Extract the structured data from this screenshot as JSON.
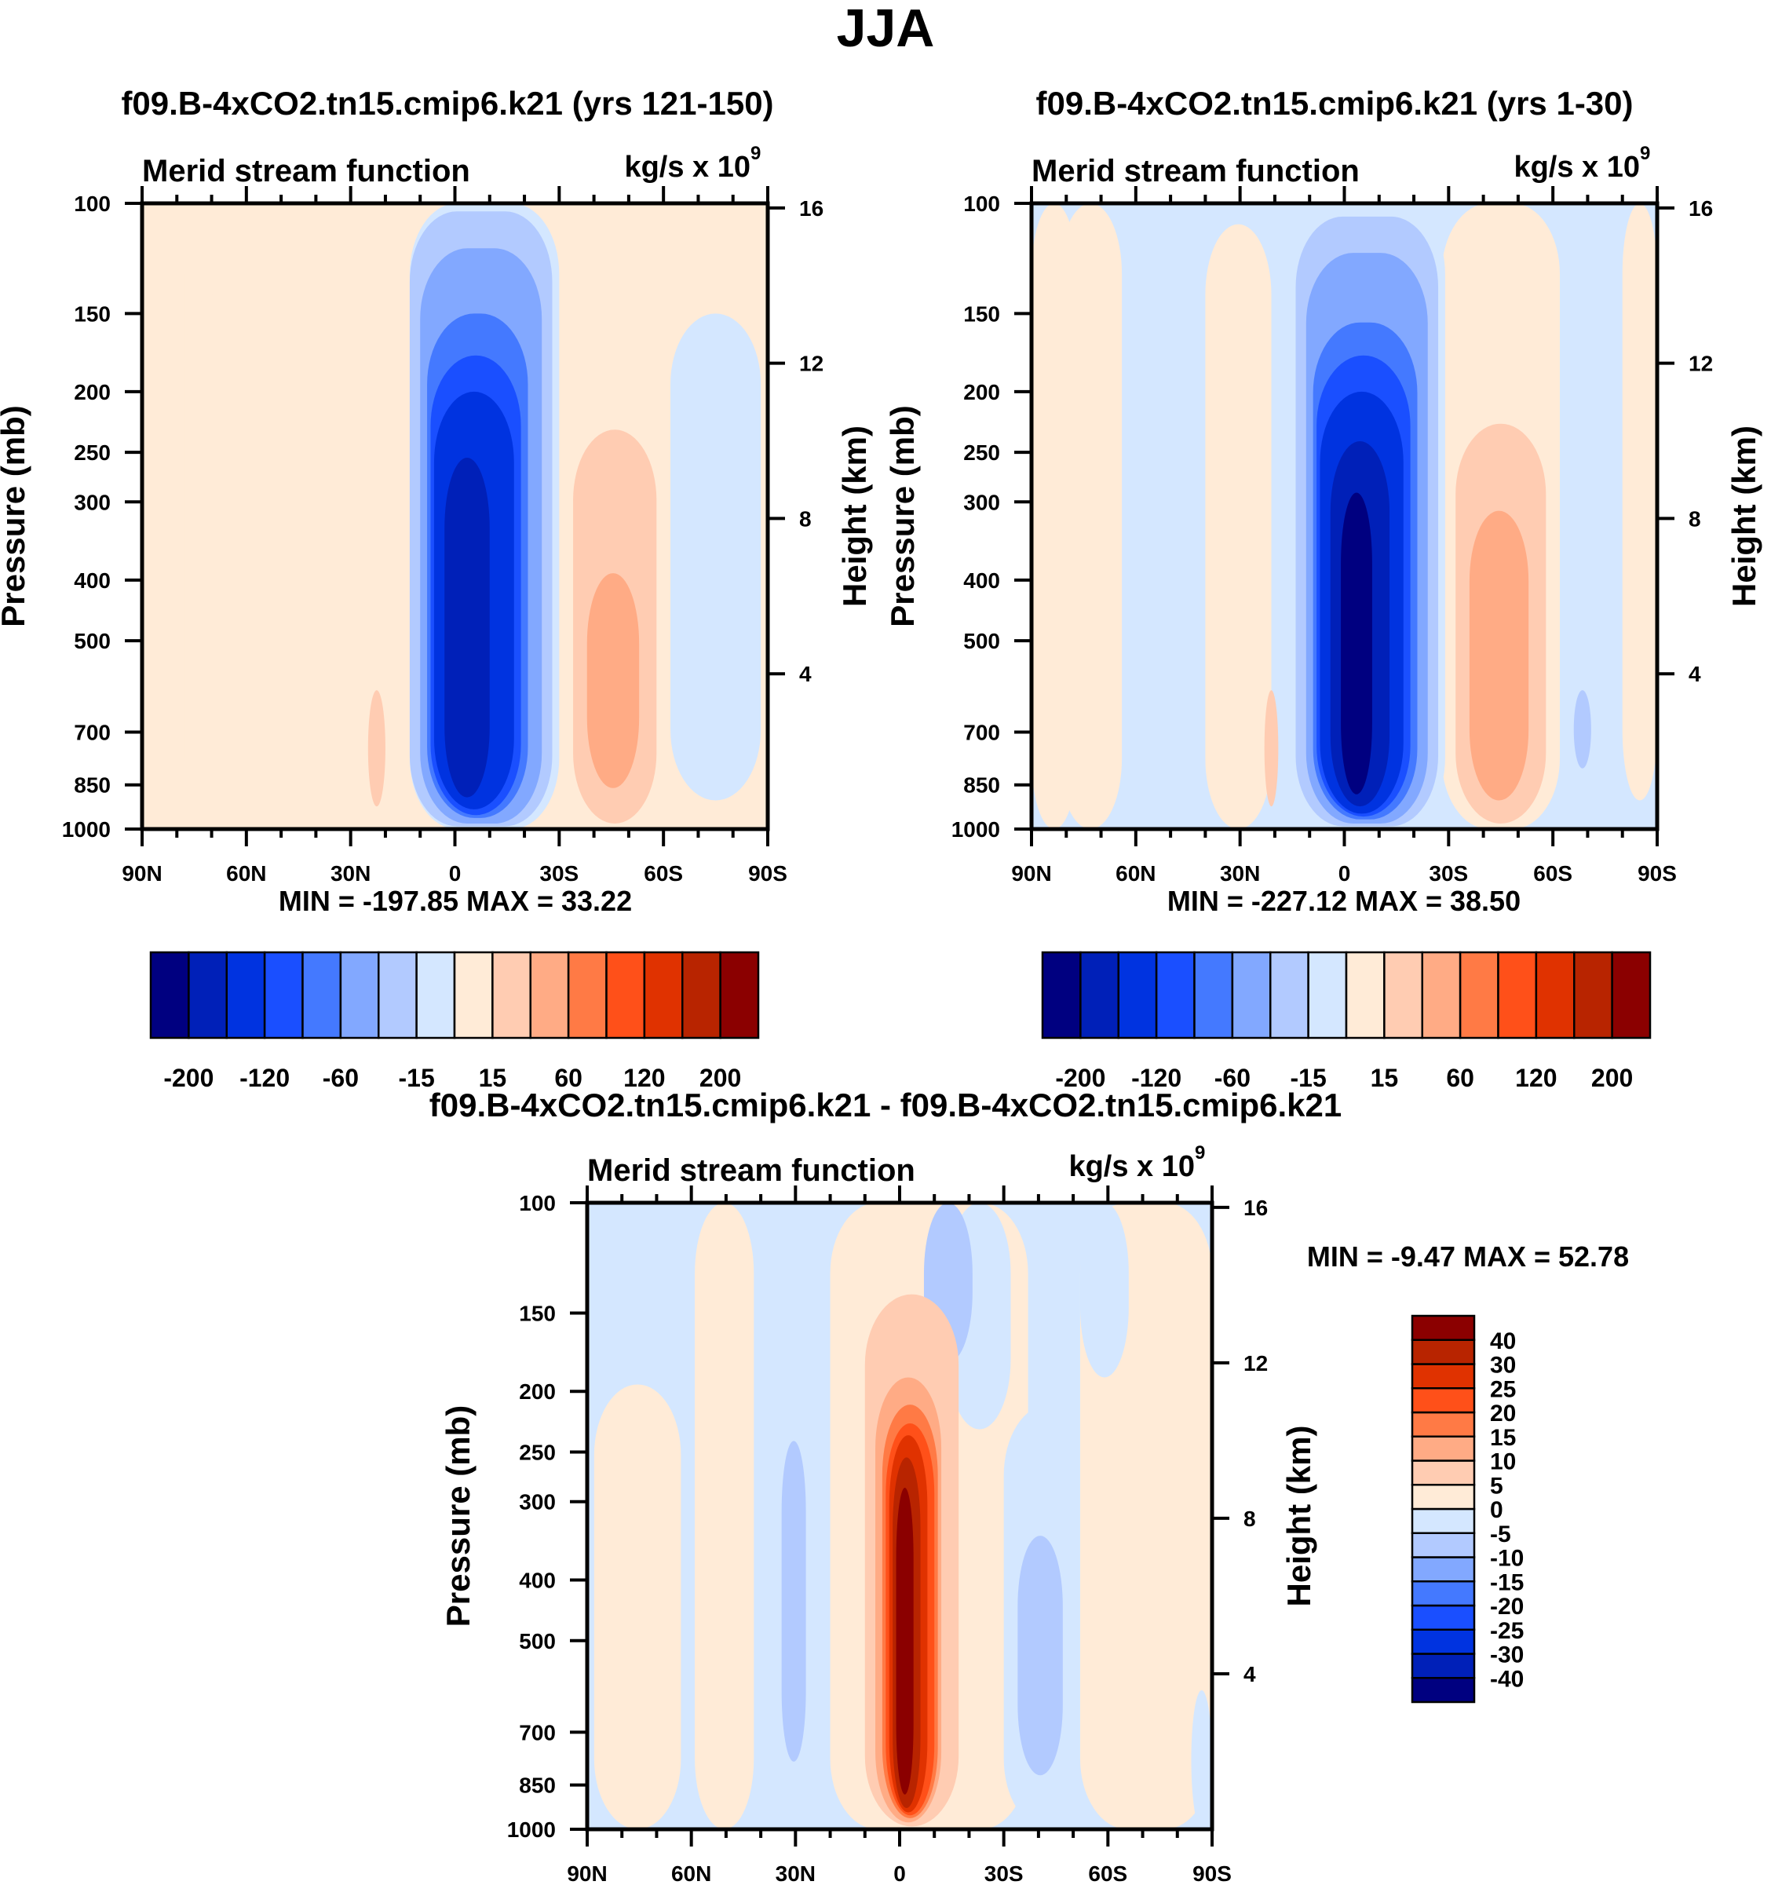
{
  "figure": {
    "main_title": "JJA"
  },
  "colors": {
    "stream_function_palette": [
      "#000080",
      "#0020b8",
      "#0033e0",
      "#1a4fff",
      "#4479ff",
      "#82a8ff",
      "#b2caff",
      "#d4e7ff",
      "#ffebd7",
      "#ffccb2",
      "#ffab85",
      "#ff7a45",
      "#ff5019",
      "#e03200",
      "#b82400",
      "#8b0000"
    ]
  },
  "chart_data": [
    {
      "id": "panel-a",
      "type": "heatmap",
      "title": "f09.B-4xCO2.tn15.cmip6.k21 (yrs 121-150)",
      "left_string": "Merid stream function",
      "right_string": "kg/s x 10",
      "right_string_exponent": "9",
      "xlabel": "",
      "ylabel": "Pressure (mb)",
      "y2label": "Height (km)",
      "xlim": [
        90,
        -90
      ],
      "ylim": [
        1000,
        100
      ],
      "x_ticks": [
        90,
        60,
        30,
        0,
        -30,
        -60,
        -90
      ],
      "x_tick_labels": [
        "90N",
        "60N",
        "30N",
        "0",
        "30S",
        "60S",
        "90S"
      ],
      "y_ticks": [
        100,
        150,
        200,
        250,
        300,
        400,
        500,
        700,
        850,
        1000
      ],
      "y_tick_labels": [
        "100",
        "150",
        "200",
        "250",
        "300",
        "400",
        "500",
        "700",
        "850",
        "1000"
      ],
      "y2_ticks_km": [
        16,
        12,
        8,
        4
      ],
      "y2_tick_labels": [
        "16",
        "12",
        "8",
        "4"
      ],
      "stats_label": "MIN = -197.85  MAX =  33.22",
      "min": -197.85,
      "max": 33.22,
      "colorbar": {
        "orientation": "horizontal",
        "levels": [
          -200,
          -160,
          -120,
          -80,
          -60,
          -40,
          -15,
          0,
          15,
          40,
          60,
          80,
          120,
          160,
          200
        ],
        "labels": [
          "-200",
          "-120",
          "-60",
          "-15",
          "15",
          "60",
          "120",
          "200"
        ]
      },
      "background_level": 8,
      "regions": [
        {
          "lat": [
            90,
            78
          ],
          "p": [
            100,
            1000
          ],
          "level": 8
        },
        {
          "lat": [
            78,
            60
          ],
          "p": [
            140,
            1000
          ],
          "level": 8
        },
        {
          "lat": [
            67,
            58
          ],
          "p": [
            100,
            125
          ],
          "level": 8
        },
        {
          "lat": [
            40,
            26
          ],
          "p": [
            118,
            1000
          ],
          "level": 8
        },
        {
          "lat": [
            -30,
            -90
          ],
          "p": [
            100,
            1000
          ],
          "level": 8
        },
        {
          "lat": [
            -62,
            -88
          ],
          "p": [
            150,
            900
          ],
          "level": 7
        },
        {
          "lat": [
            25,
            20
          ],
          "p": [
            600,
            920
          ],
          "level": 9
        },
        {
          "lat": [
            13,
            -30
          ],
          "p": [
            100,
            1000
          ],
          "level": 7
        },
        {
          "lat": [
            13,
            -28
          ],
          "p": [
            103,
            990
          ],
          "level": 6
        },
        {
          "lat": [
            10,
            -25
          ],
          "p": [
            118,
            980
          ],
          "level": 5
        },
        {
          "lat": [
            8,
            -21
          ],
          "p": [
            150,
            960
          ],
          "level": 4
        },
        {
          "lat": [
            7,
            -19
          ],
          "p": [
            175,
            950
          ],
          "level": 3
        },
        {
          "lat": [
            6,
            -17
          ],
          "p": [
            200,
            930
          ],
          "level": 2
        },
        {
          "lat": [
            3,
            -10
          ],
          "p": [
            255,
            890
          ],
          "level": 1
        },
        {
          "lat": [
            -34,
            -58
          ],
          "p": [
            230,
            980
          ],
          "level": 9
        },
        {
          "lat": [
            -38,
            -53
          ],
          "p": [
            390,
            860
          ],
          "level": 10
        }
      ]
    },
    {
      "id": "panel-b",
      "type": "heatmap",
      "title": "f09.B-4xCO2.tn15.cmip6.k21 (yrs 1-30)",
      "left_string": "Merid stream function",
      "right_string": "kg/s x 10",
      "right_string_exponent": "9",
      "xlabel": "",
      "ylabel": "Pressure (mb)",
      "y2label": "Height (km)",
      "xlim": [
        90,
        -90
      ],
      "ylim": [
        1000,
        100
      ],
      "x_ticks": [
        90,
        60,
        30,
        0,
        -30,
        -60,
        -90
      ],
      "x_tick_labels": [
        "90N",
        "60N",
        "30N",
        "0",
        "30S",
        "60S",
        "90S"
      ],
      "y_ticks": [
        100,
        150,
        200,
        250,
        300,
        400,
        500,
        700,
        850,
        1000
      ],
      "y_tick_labels": [
        "100",
        "150",
        "200",
        "250",
        "300",
        "400",
        "500",
        "700",
        "850",
        "1000"
      ],
      "y2_ticks_km": [
        16,
        12,
        8,
        4
      ],
      "y2_tick_labels": [
        "16",
        "12",
        "8",
        "4"
      ],
      "stats_label": "MIN = -227.12  MAX =  38.50",
      "min": -227.12,
      "max": 38.5,
      "colorbar": {
        "orientation": "horizontal",
        "levels": [
          -200,
          -160,
          -120,
          -80,
          -60,
          -40,
          -15,
          0,
          15,
          40,
          60,
          80,
          120,
          160,
          200
        ],
        "labels": [
          "-200",
          "-120",
          "-60",
          "-15",
          "15",
          "60",
          "120",
          "200"
        ]
      },
      "background_level": 7,
      "regions": [
        {
          "lat": [
            90,
            77
          ],
          "p": [
            100,
            1000
          ],
          "level": 8
        },
        {
          "lat": [
            82,
            64
          ],
          "p": [
            100,
            1000
          ],
          "level": 8
        },
        {
          "lat": [
            40,
            21
          ],
          "p": [
            108,
            1000
          ],
          "level": 8
        },
        {
          "lat": [
            -28,
            -62
          ],
          "p": [
            100,
            1000
          ],
          "level": 8
        },
        {
          "lat": [
            -80,
            -90
          ],
          "p": [
            100,
            900
          ],
          "level": 8
        },
        {
          "lat": [
            23,
            19
          ],
          "p": [
            600,
            920
          ],
          "level": 9
        },
        {
          "lat": [
            13,
            -29
          ],
          "p": [
            100,
            1000
          ],
          "level": 7
        },
        {
          "lat": [
            14,
            -27
          ],
          "p": [
            105,
            990
          ],
          "level": 6
        },
        {
          "lat": [
            11,
            -24
          ],
          "p": [
            120,
            980
          ],
          "level": 5
        },
        {
          "lat": [
            9,
            -21
          ],
          "p": [
            155,
            965
          ],
          "level": 4
        },
        {
          "lat": [
            8,
            -19
          ],
          "p": [
            175,
            955
          ],
          "level": 3
        },
        {
          "lat": [
            7,
            -17
          ],
          "p": [
            200,
            945
          ],
          "level": 2
        },
        {
          "lat": [
            4,
            -13
          ],
          "p": [
            240,
            920
          ],
          "level": 1
        },
        {
          "lat": [
            1,
            -8
          ],
          "p": [
            290,
            880
          ],
          "level": 0
        },
        {
          "lat": [
            -66,
            -71
          ],
          "p": [
            600,
            800
          ],
          "level": 6
        },
        {
          "lat": [
            -32,
            -58
          ],
          "p": [
            225,
            980
          ],
          "level": 9
        },
        {
          "lat": [
            -36,
            -53
          ],
          "p": [
            310,
            900
          ],
          "level": 10
        }
      ]
    },
    {
      "id": "panel-diff",
      "type": "heatmap",
      "title": "f09.B-4xCO2.tn15.cmip6.k21 - f09.B-4xCO2.tn15.cmip6.k21",
      "left_string": "Merid stream function",
      "right_string": "kg/s x 10",
      "right_string_exponent": "9",
      "xlabel": "",
      "ylabel": "Pressure (mb)",
      "y2label": "Height (km)",
      "xlim": [
        90,
        -90
      ],
      "ylim": [
        1000,
        100
      ],
      "x_ticks": [
        90,
        60,
        30,
        0,
        -30,
        -60,
        -90
      ],
      "x_tick_labels": [
        "90N",
        "60N",
        "30N",
        "0",
        "30S",
        "60S",
        "90S"
      ],
      "y_ticks": [
        100,
        150,
        200,
        250,
        300,
        400,
        500,
        700,
        850,
        1000
      ],
      "y_tick_labels": [
        "100",
        "150",
        "200",
        "250",
        "300",
        "400",
        "500",
        "700",
        "850",
        "1000"
      ],
      "y2_ticks_km": [
        16,
        12,
        8,
        4
      ],
      "y2_tick_labels": [
        "16",
        "12",
        "8",
        "4"
      ],
      "stats_label": "MIN =  -9.47  MAX =  52.78",
      "min": -9.47,
      "max": 52.78,
      "colorbar": {
        "orientation": "vertical",
        "levels": [
          -40,
          -30,
          -25,
          -20,
          -15,
          -10,
          -5,
          0,
          5,
          10,
          15,
          20,
          25,
          30,
          40
        ],
        "labels": [
          "-40",
          "-30",
          "-25",
          "-20",
          "-15",
          "-10",
          "-5",
          "0",
          "5",
          "10",
          "15",
          "20",
          "25",
          "30",
          "40"
        ]
      },
      "background_level": 7,
      "regions": [
        {
          "lat": [
            88,
            63
          ],
          "p": [
            195,
            1000
          ],
          "level": 8
        },
        {
          "lat": [
            59,
            42
          ],
          "p": [
            100,
            1000
          ],
          "level": 8
        },
        {
          "lat": [
            20,
            -37
          ],
          "p": [
            100,
            1000
          ],
          "level": 8
        },
        {
          "lat": [
            -14,
            -32
          ],
          "p": [
            100,
            230
          ],
          "level": 7
        },
        {
          "lat": [
            -7,
            -21
          ],
          "p": [
            100,
            180
          ],
          "level": 6
        },
        {
          "lat": [
            -30,
            -56
          ],
          "p": [
            210,
            1000
          ],
          "level": 7
        },
        {
          "lat": [
            -52,
            -90
          ],
          "p": [
            100,
            1000
          ],
          "level": 8
        },
        {
          "lat": [
            -52,
            -66
          ],
          "p": [
            100,
            190
          ],
          "level": 7
        },
        {
          "lat": [
            -84,
            -90
          ],
          "p": [
            600,
            1000
          ],
          "level": 7
        },
        {
          "lat": [
            34,
            27
          ],
          "p": [
            240,
            780
          ],
          "level": 6
        },
        {
          "lat": [
            -34,
            -47
          ],
          "p": [
            340,
            820
          ],
          "level": 6
        },
        {
          "lat": [
            10,
            -17
          ],
          "p": [
            140,
            990
          ],
          "level": 9
        },
        {
          "lat": [
            7,
            -12
          ],
          "p": [
            190,
            975
          ],
          "level": 10
        },
        {
          "lat": [
            5,
            -11
          ],
          "p": [
            210,
            960
          ],
          "level": 11
        },
        {
          "lat": [
            4,
            -10
          ],
          "p": [
            225,
            950
          ],
          "level": 12
        },
        {
          "lat": [
            3,
            -8
          ],
          "p": [
            235,
            940
          ],
          "level": 13
        },
        {
          "lat": [
            2,
            -6
          ],
          "p": [
            255,
            925
          ],
          "level": 14
        },
        {
          "lat": [
            1,
            -4
          ],
          "p": [
            285,
            880
          ],
          "level": 15
        }
      ]
    }
  ]
}
